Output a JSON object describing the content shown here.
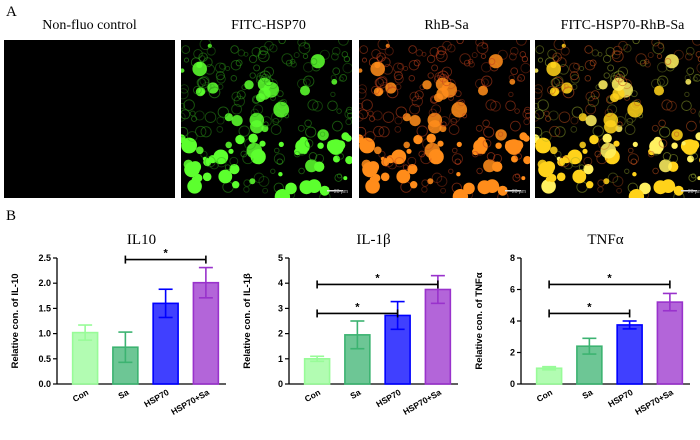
{
  "panel_a": {
    "letter": "A",
    "images": [
      {
        "title": "Non-fluo control",
        "kind": "none"
      },
      {
        "title": "FITC-HSP70",
        "kind": "green"
      },
      {
        "title": "RhB-Sa",
        "kind": "red"
      },
      {
        "title": "FITC-HSP70-RhB-Sa",
        "kind": "merge"
      }
    ],
    "scalebar_label": "20 μm"
  },
  "panel_b": {
    "letter": "B"
  },
  "colors": {
    "Con": "#98FB98",
    "Sa": "#3CB371",
    "HSP70": "#0000FF",
    "HSP70+Sa": "#9932CC"
  },
  "chart_data": [
    {
      "type": "bar",
      "title": "IL10",
      "ylabel": "Relative con. of IL-10",
      "categories": [
        "Con",
        "Sa",
        "HSP70",
        "HSP70+Sa"
      ],
      "values": [
        1.02,
        0.73,
        1.6,
        2.01
      ],
      "errors": [
        0.15,
        0.3,
        0.28,
        0.3
      ],
      "ylim": [
        0,
        2.5
      ],
      "yticks": [
        "0.0",
        "0.5",
        "1.0",
        "1.5",
        "2.0",
        "2.5"
      ],
      "significance": [
        {
          "from": 1,
          "to": 3,
          "label": "*"
        }
      ]
    },
    {
      "type": "bar",
      "title": "IL-1β",
      "ylabel": "Relative con. of IL-1β",
      "categories": [
        "Con",
        "Sa",
        "HSP70",
        "HSP70+Sa"
      ],
      "values": [
        1.0,
        1.95,
        2.72,
        3.75
      ],
      "errors": [
        0.1,
        0.55,
        0.55,
        0.55
      ],
      "ylim": [
        0,
        5
      ],
      "yticks": [
        "0",
        "1",
        "2",
        "3",
        "4",
        "5"
      ],
      "significance": [
        {
          "from": 0,
          "to": 3,
          "label": "*"
        },
        {
          "from": 0,
          "to": 2,
          "label": "*"
        }
      ]
    },
    {
      "type": "bar",
      "title": "TNFα",
      "ylabel": "Relative con. of TNFα",
      "categories": [
        "Con",
        "Sa",
        "HSP70",
        "HSP70+Sa"
      ],
      "values": [
        1.0,
        2.4,
        3.75,
        5.2
      ],
      "errors": [
        0.1,
        0.5,
        0.25,
        0.55
      ],
      "ylim": [
        0,
        8
      ],
      "yticks": [
        "0",
        "2",
        "4",
        "6",
        "8"
      ],
      "significance": [
        {
          "from": 0,
          "to": 3,
          "label": "*"
        },
        {
          "from": 0,
          "to": 2,
          "label": "*"
        }
      ]
    }
  ]
}
